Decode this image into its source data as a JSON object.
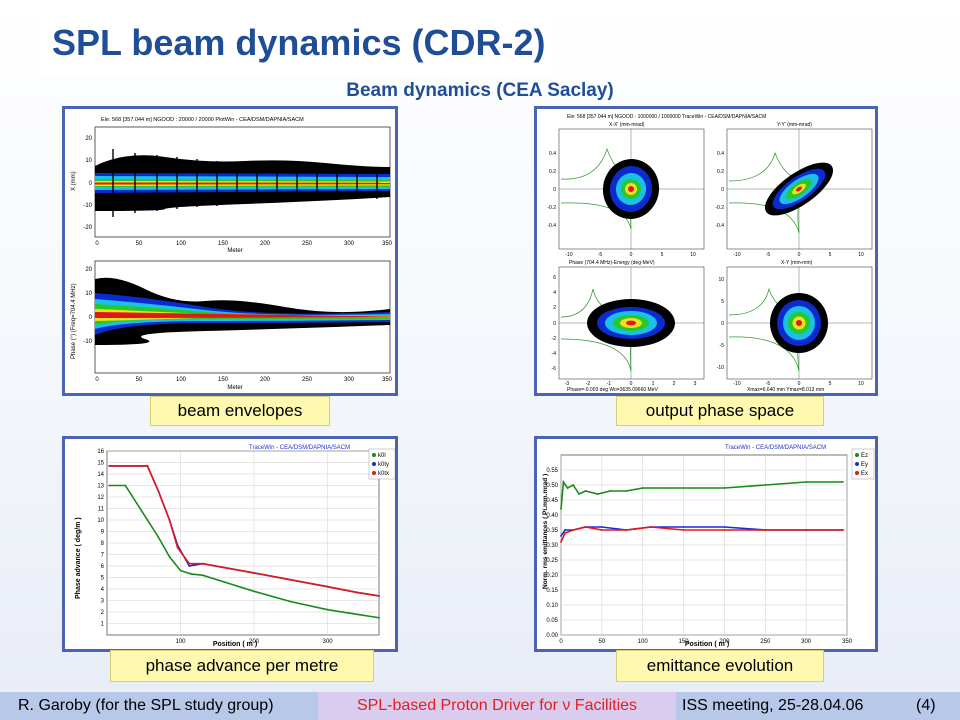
{
  "slide": {
    "title": "SPL beam dynamics (CDR-2)",
    "subtitle": "Beam dynamics (CEA Saclay)"
  },
  "panels": {
    "envelopes": {
      "caption": "beam envelopes",
      "header": "Ele: 568 [357.044 m]    NGOOD : 20000 / 20000       PlotWin - CEA/DSM/DAPNIA/SACM",
      "top_ylabel": "X (mm)",
      "bottom_ylabel": "Phase (°)  (Freq=704.4 MHz)",
      "xlabel": "Meter",
      "top_yticks": [
        "20",
        "10",
        "0",
        "-10",
        "-20"
      ],
      "bottom_yticks": [
        "20",
        "10",
        "0",
        "-10"
      ],
      "xticks": [
        "0",
        "50",
        "100",
        "150",
        "200",
        "250",
        "300",
        "350"
      ]
    },
    "phase_space": {
      "caption": "output phase space",
      "header": "Ele: 568 [357.044 m]    NGOOD : 1000000 / 1000000      TraceWin - CEA/DSM/DAPNIA/SACM",
      "plots": [
        {
          "title": "X-X' (mm-mrad)",
          "yticks": [
            "0.4",
            "0.2",
            "0",
            "-0.2",
            "-0.4"
          ],
          "xticks": [
            "-10",
            "-5",
            "0",
            "5",
            "10"
          ]
        },
        {
          "title": "Y-Y' (mm-mrad)",
          "yticks": [
            "0.4",
            "0.2",
            "0",
            "-0.2",
            "-0.4"
          ],
          "xticks": [
            "-10",
            "-5",
            "0",
            "5",
            "10"
          ]
        },
        {
          "title": "Phase (704.4 MHz)-Energy (deg-MeV)",
          "yticks": [
            "6",
            "4",
            "2",
            "0",
            "-2",
            "-4",
            "-6"
          ],
          "xticks": [
            "-3",
            "-2",
            "-1",
            "0",
            "1",
            "2",
            "3"
          ]
        },
        {
          "title": "X-Y (mm-mm)",
          "yticks": [
            "10",
            "5",
            "0",
            "-5",
            "-10"
          ],
          "xticks": [
            "-10",
            "-5",
            "0",
            "5",
            "10"
          ]
        }
      ],
      "footer_left": "Phase=-0.003 deg  Wo=3635.09660 MeV",
      "footer_right": "Xmax=6.640 mm  Ymax=8.013 mm"
    },
    "phase_advance": {
      "caption": "phase advance per metre",
      "header": "TraceWin - CEA/DSM/DAPNIA/SACM",
      "ylabel": "Phase advance ( deg/m )",
      "xlabel": "Position ( m )",
      "legend": [
        "k0l",
        "k0ty",
        "k0tx"
      ]
    },
    "emittance": {
      "caption": "emittance evolution",
      "header": "TraceWin - CEA/DSM/DAPNIA/SACM",
      "ylabel": "Norm. rms emittances ( Pi.mm.mrad )",
      "xlabel": "Position ( m )",
      "legend": [
        "Ez",
        "Ey",
        "Ex"
      ]
    }
  },
  "footer": {
    "author": "R. Garoby (for the SPL study group)",
    "topic": "SPL-based Proton Driver for ν Facilities",
    "meeting": "ISS meeting, 25-28.04.06",
    "page": "(4)"
  },
  "colors": {
    "title": "#1f4e96",
    "panel_border": "#4a63b5",
    "caption_bg": "#fff9b0",
    "footer_blue": "#b7c8e8",
    "footer_purple": "#d9ccef",
    "series_green": "#1a8a1a",
    "series_blue": "#1a2ad8",
    "series_red": "#e01818"
  },
  "chart_data": [
    {
      "type": "line",
      "title": "",
      "xlabel": "Position ( m )",
      "ylabel": "Phase advance ( deg/m )",
      "xlim": [
        0,
        370
      ],
      "ylim": [
        0,
        16
      ],
      "xticks": [
        100,
        200,
        300
      ],
      "yticks": [
        1,
        2,
        3,
        4,
        5,
        6,
        7,
        8,
        9,
        10,
        11,
        12,
        13,
        14,
        15,
        16
      ],
      "grid": true,
      "legend": "top-right",
      "series": [
        {
          "name": "k0l",
          "color": "#1a8a1a",
          "x": [
            3,
            25,
            40,
            55,
            70,
            85,
            100,
            115,
            130,
            160,
            200,
            250,
            300,
            340,
            370
          ],
          "y": [
            13,
            13,
            11.5,
            10,
            8.5,
            6.8,
            5.6,
            5.3,
            5.2,
            4.6,
            3.8,
            2.9,
            2.2,
            1.8,
            1.5
          ]
        },
        {
          "name": "k0ty",
          "color": "#1a2ad8",
          "x": [
            3,
            40,
            55,
            70,
            85,
            96,
            112,
            130,
            200,
            250,
            300,
            340,
            370
          ],
          "y": [
            14.7,
            14.7,
            14.7,
            12.5,
            10,
            7.8,
            6.0,
            6.2,
            5.4,
            4.8,
            4.2,
            3.7,
            3.4
          ]
        },
        {
          "name": "k0tx",
          "color": "#e01818",
          "x": [
            3,
            40,
            55,
            70,
            85,
            96,
            112,
            130,
            200,
            250,
            300,
            340,
            370
          ],
          "y": [
            14.7,
            14.7,
            14.7,
            12.5,
            10,
            7.6,
            6.2,
            6.2,
            5.4,
            4.8,
            4.2,
            3.7,
            3.4
          ]
        }
      ]
    },
    {
      "type": "line",
      "title": "",
      "xlabel": "Position ( m )",
      "ylabel": "Norm. rms emittances ( Pi.mm.mrad )",
      "xlim": [
        0,
        350
      ],
      "ylim": [
        0,
        0.6
      ],
      "xticks": [
        0,
        50,
        100,
        150,
        200,
        250,
        300,
        350
      ],
      "yticks": [
        0,
        0.05,
        0.1,
        0.15,
        0.2,
        0.25,
        0.3,
        0.35,
        0.4,
        0.45,
        0.5,
        0.55
      ],
      "grid": true,
      "legend": "top-right",
      "series": [
        {
          "name": "Ez",
          "color": "#1a8a1a",
          "x": [
            0,
            3,
            8,
            15,
            22,
            30,
            45,
            60,
            80,
            100,
            130,
            160,
            200,
            250,
            300,
            345
          ],
          "y": [
            0.42,
            0.51,
            0.49,
            0.5,
            0.47,
            0.48,
            0.47,
            0.48,
            0.48,
            0.49,
            0.49,
            0.49,
            0.49,
            0.5,
            0.51,
            0.51
          ]
        },
        {
          "name": "Ey",
          "color": "#1a2ad8",
          "x": [
            0,
            5,
            15,
            30,
            50,
            80,
            110,
            150,
            200,
            250,
            300,
            345
          ],
          "y": [
            0.33,
            0.35,
            0.35,
            0.36,
            0.36,
            0.35,
            0.36,
            0.36,
            0.36,
            0.35,
            0.35,
            0.35
          ]
        },
        {
          "name": "Ex",
          "color": "#e01818",
          "x": [
            0,
            5,
            15,
            30,
            50,
            80,
            110,
            150,
            200,
            250,
            300,
            345
          ],
          "y": [
            0.31,
            0.34,
            0.35,
            0.36,
            0.35,
            0.35,
            0.36,
            0.35,
            0.35,
            0.35,
            0.35,
            0.35
          ]
        }
      ]
    }
  ]
}
